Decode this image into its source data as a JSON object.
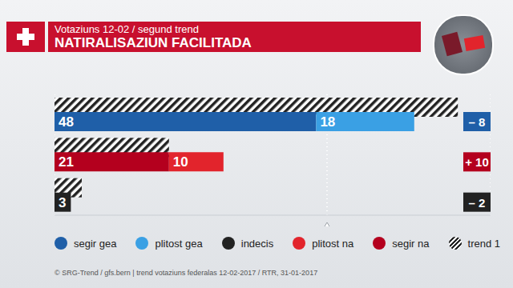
{
  "chart_data": {
    "type": "bar",
    "orientation": "horizontal",
    "stacked": true,
    "data_labels": true,
    "tick_labels": false,
    "grid": true,
    "subtitle": "Votaziuns 12-02 / segund trend",
    "title": "NATIRALISAZIUN FACILITADA",
    "categories": [
      null,
      null,
      null
    ],
    "series": [
      {
        "name": "segir gea",
        "color": "#1f5fa8",
        "values": [
          48,
          null,
          null
        ]
      },
      {
        "name": "plitost gea",
        "color": "#3aa0e4",
        "values": [
          18,
          null,
          null
        ]
      },
      {
        "name": "indecis",
        "color": "#222222",
        "values": [
          null,
          null,
          3
        ]
      },
      {
        "name": "plitost na",
        "color": "#e2242c",
        "values": [
          null,
          10,
          null
        ]
      },
      {
        "name": "segir na",
        "color": "#b4001e",
        "values": [
          null,
          21,
          null
        ]
      }
    ],
    "trend": {
      "name": "trend 1",
      "color": "#222222",
      "values": [
        74,
        21,
        5
      ]
    },
    "changes": {
      "values": [
        -8,
        10,
        -2
      ],
      "value_labels": [
        "– 8",
        "+ 10",
        "– 2"
      ]
    },
    "xlim": [
      0,
      80
    ],
    "xticks": [
      50
    ],
    "source": "© SRG-Trend / gfs.bern | trend votaziuns federalas 12-02-2017 / RTR, 31-01-2017"
  }
}
